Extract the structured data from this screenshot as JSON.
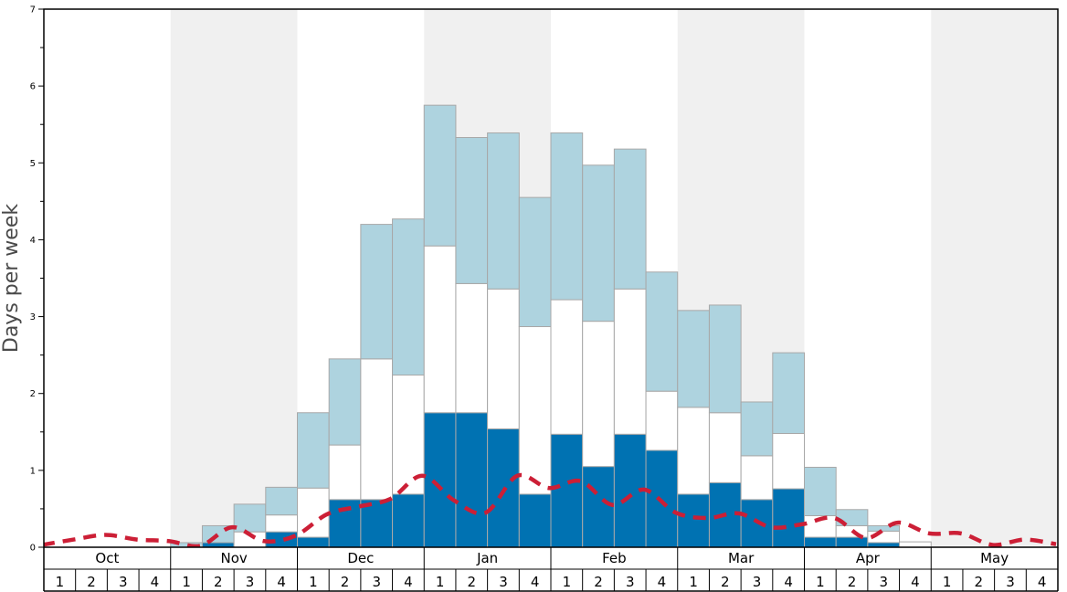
{
  "chart_data": {
    "type": "bar",
    "ylabel": "Days per week",
    "ylim": [
      0,
      7
    ],
    "yticks": [
      0,
      1,
      2,
      3,
      4,
      5,
      6,
      7
    ],
    "months": [
      "Oct",
      "Nov",
      "Dec",
      "Jan",
      "Feb",
      "Mar",
      "Apr",
      "May"
    ],
    "weeks": [
      "1",
      "2",
      "3",
      "4"
    ],
    "stacked": true,
    "series": [
      {
        "color": "#0072b2",
        "values": [
          0,
          0,
          0,
          0,
          0,
          0.06,
          0,
          0.2,
          0.13,
          0.62,
          0.62,
          0.69,
          1.75,
          1.75,
          1.54,
          0.69,
          1.47,
          1.05,
          1.47,
          1.26,
          0.69,
          0.84,
          0.62,
          0.76,
          0.13,
          0.13,
          0.06,
          0,
          0,
          0,
          0,
          0
        ]
      },
      {
        "color": "#ffffff",
        "values": [
          0,
          0,
          0,
          0,
          0,
          0,
          0.2,
          0.22,
          0.64,
          0.71,
          1.83,
          1.55,
          2.17,
          1.68,
          1.82,
          2.18,
          1.75,
          1.89,
          1.89,
          0.77,
          1.13,
          0.91,
          0.57,
          0.72,
          0.28,
          0.15,
          0.15,
          0.07,
          0,
          0,
          0,
          0
        ]
      },
      {
        "color": "#aed3df",
        "values": [
          0,
          0,
          0,
          0,
          0.06,
          0.22,
          0.36,
          0.36,
          0.98,
          1.12,
          1.75,
          2.03,
          1.83,
          1.9,
          2.03,
          1.68,
          2.17,
          2.03,
          1.82,
          1.55,
          1.26,
          1.4,
          0.7,
          1.05,
          0.63,
          0.21,
          0.07,
          0,
          0,
          0,
          0,
          0
        ]
      }
    ],
    "line": {
      "color": "#cc1f36",
      "style": "dashed",
      "values": [
        0.03,
        0.1,
        0.16,
        0.1,
        0.08,
        0.02,
        0.26,
        0.08,
        0.15,
        0.43,
        0.53,
        0.63,
        0.93,
        0.61,
        0.45,
        0.93,
        0.77,
        0.86,
        0.55,
        0.75,
        0.45,
        0.38,
        0.44,
        0.26,
        0.3,
        0.38,
        0.12,
        0.32,
        0.18,
        0.18,
        0.03,
        0.1,
        0.04
      ]
    },
    "grid": false,
    "legend": "none"
  }
}
